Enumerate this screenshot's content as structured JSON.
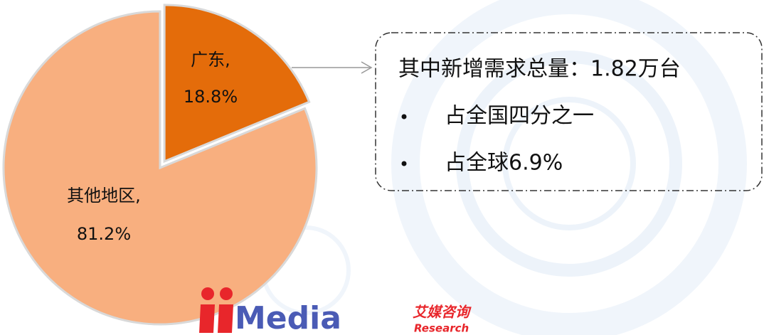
{
  "chart_data": {
    "type": "pie",
    "categories": [
      "广东,",
      "其他地区,"
    ],
    "values": [
      18.8,
      81.2
    ],
    "value_labels": [
      "18.8%",
      "81.2%"
    ],
    "colors": [
      "#e46c0a",
      "#f8af7f"
    ],
    "annotation": {
      "title": "其中新增需求总量：1.82万台",
      "bullets": [
        "占全国四分之一",
        "占全球6.9%"
      ]
    }
  },
  "logo": {
    "text": "Media",
    "cn": "艾媒咨询",
    "en": "Research"
  }
}
